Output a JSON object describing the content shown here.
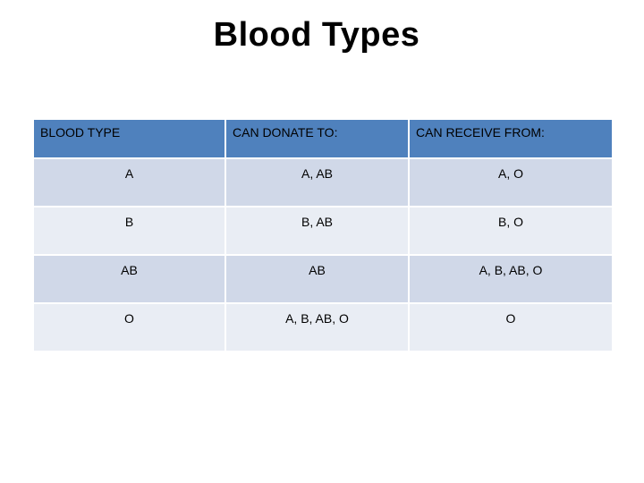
{
  "title": "Blood Types",
  "table": {
    "headers": [
      "BLOOD TYPE",
      "CAN DONATE TO:",
      "CAN RECEIVE FROM:"
    ],
    "rows": [
      [
        "A",
        "A, AB",
        "A, O"
      ],
      [
        "B",
        "B, AB",
        "B, O"
      ],
      [
        "AB",
        "AB",
        "A, B, AB, O"
      ],
      [
        "O",
        "A, B, AB, O",
        "O"
      ]
    ]
  },
  "colors": {
    "header_bg": "#4f81bd",
    "row_band_dark": "#d0d8e8",
    "row_band_light": "#e9edf4"
  }
}
